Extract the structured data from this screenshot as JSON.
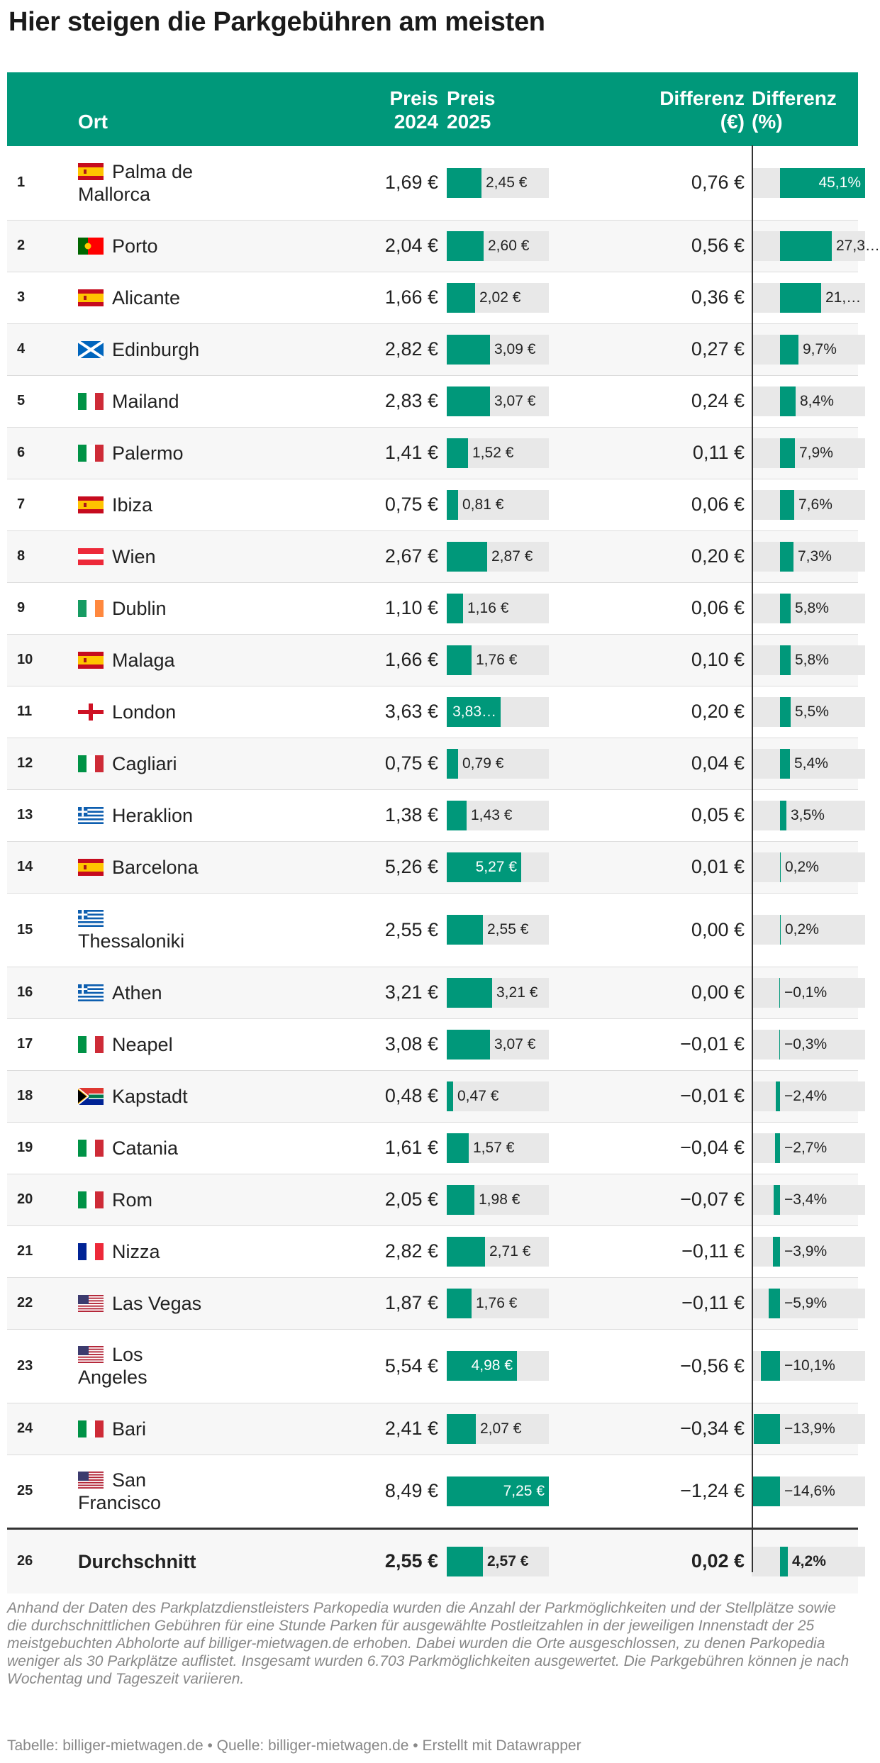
{
  "title": "Hier steigen die Parkgebühren am meisten",
  "headers": {
    "ort": "Ort",
    "preis2024": [
      "Preis",
      "2024"
    ],
    "preis2025": [
      "Preis",
      "2025"
    ],
    "diff_abs": [
      "Differenz",
      "(€)"
    ],
    "diff_pct": [
      "Differenz",
      "(%)"
    ]
  },
  "colors": {
    "accent": "#00987a",
    "bar_background": "#e8e8e8",
    "text": "#222222",
    "muted": "#888888"
  },
  "chart_data": {
    "type": "table",
    "columns": [
      "",
      "Ort",
      "Preis 2024",
      "Preis 2025",
      "Differenz (€)",
      "Differenz (%)"
    ],
    "price_bar_max": 7.25,
    "pct_range": [
      -14.6,
      45.1
    ],
    "rows": [
      {
        "rank": "1",
        "ort": "Palma de Mallorca",
        "flag": "spain-flag-icon",
        "p24": "1,69 €",
        "p25": "2,45 €",
        "p25v": 2.45,
        "dabs": "0,76 €",
        "dpct": "45,1%",
        "dpctv": 45.1
      },
      {
        "rank": "2",
        "ort": "Porto",
        "flag": "portugal-flag-icon",
        "p24": "2,04 €",
        "p25": "2,60 €",
        "p25v": 2.6,
        "dabs": "0,56 €",
        "dpct": "27,3…",
        "dpctv": 27.3
      },
      {
        "rank": "3",
        "ort": "Alicante",
        "flag": "spain-flag-icon",
        "p24": "1,66 €",
        "p25": "2,02 €",
        "p25v": 2.02,
        "dabs": "0,36 €",
        "dpct": "21,…",
        "dpctv": 21.7
      },
      {
        "rank": "4",
        "ort": "Edinburgh",
        "flag": "scotland-flag-icon",
        "p24": "2,82 €",
        "p25": "3,09 €",
        "p25v": 3.09,
        "dabs": "0,27 €",
        "dpct": "9,7%",
        "dpctv": 9.7
      },
      {
        "rank": "5",
        "ort": "Mailand",
        "flag": "italy-flag-icon",
        "p24": "2,83 €",
        "p25": "3,07 €",
        "p25v": 3.07,
        "dabs": "0,24 €",
        "dpct": "8,4%",
        "dpctv": 8.4
      },
      {
        "rank": "6",
        "ort": "Palermo",
        "flag": "italy-flag-icon",
        "p24": "1,41 €",
        "p25": "1,52 €",
        "p25v": 1.52,
        "dabs": "0,11 €",
        "dpct": "7,9%",
        "dpctv": 7.9
      },
      {
        "rank": "7",
        "ort": "Ibiza",
        "flag": "spain-flag-icon",
        "p24": "0,75 €",
        "p25": "0,81 €",
        "p25v": 0.81,
        "dabs": "0,06 €",
        "dpct": "7,6%",
        "dpctv": 7.6
      },
      {
        "rank": "8",
        "ort": "Wien",
        "flag": "austria-flag-icon",
        "p24": "2,67 €",
        "p25": "2,87 €",
        "p25v": 2.87,
        "dabs": "0,20 €",
        "dpct": "7,3%",
        "dpctv": 7.3
      },
      {
        "rank": "9",
        "ort": "Dublin",
        "flag": "ireland-flag-icon",
        "p24": "1,10 €",
        "p25": "1,16 €",
        "p25v": 1.16,
        "dabs": "0,06 €",
        "dpct": "5,8%",
        "dpctv": 5.8
      },
      {
        "rank": "10",
        "ort": "Malaga",
        "flag": "spain-flag-icon",
        "p24": "1,66 €",
        "p25": "1,76 €",
        "p25v": 1.76,
        "dabs": "0,10 €",
        "dpct": "5,8%",
        "dpctv": 5.8
      },
      {
        "rank": "11",
        "ort": "London",
        "flag": "england-flag-icon",
        "p24": "3,63 €",
        "p25": "3,83…",
        "p25v": 3.83,
        "dabs": "0,20 €",
        "dpct": "5,5%",
        "dpctv": 5.5
      },
      {
        "rank": "12",
        "ort": "Cagliari",
        "flag": "italy-flag-icon",
        "p24": "0,75 €",
        "p25": "0,79 €",
        "p25v": 0.79,
        "dabs": "0,04 €",
        "dpct": "5,4%",
        "dpctv": 5.4
      },
      {
        "rank": "13",
        "ort": "Heraklion",
        "flag": "greece-flag-icon",
        "p24": "1,38 €",
        "p25": "1,43 €",
        "p25v": 1.43,
        "dabs": "0,05 €",
        "dpct": "3,5%",
        "dpctv": 3.5
      },
      {
        "rank": "14",
        "ort": "Barcelona",
        "flag": "spain-flag-icon",
        "p24": "5,26 €",
        "p25": "5,27 €",
        "p25v": 5.27,
        "dabs": "0,01 €",
        "dpct": "0,2%",
        "dpctv": 0.2
      },
      {
        "rank": "15",
        "ort": "Thessaloniki",
        "flag": "greece-flag-icon",
        "p24": "2,55 €",
        "p25": "2,55 €",
        "p25v": 2.55,
        "dabs": "0,00 €",
        "dpct": "0,2%",
        "dpctv": 0.2
      },
      {
        "rank": "16",
        "ort": "Athen",
        "flag": "greece-flag-icon",
        "p24": "3,21 €",
        "p25": "3,21 €",
        "p25v": 3.21,
        "dabs": "0,00 €",
        "dpct": "−0,1%",
        "dpctv": -0.1
      },
      {
        "rank": "17",
        "ort": "Neapel",
        "flag": "italy-flag-icon",
        "p24": "3,08 €",
        "p25": "3,07 €",
        "p25v": 3.07,
        "dabs": "−0,01 €",
        "dpct": "−0,3%",
        "dpctv": -0.3
      },
      {
        "rank": "18",
        "ort": "Kapstadt",
        "flag": "south-africa-flag-icon",
        "p24": "0,48 €",
        "p25": "0,47 €",
        "p25v": 0.47,
        "dabs": "−0,01 €",
        "dpct": "−2,4%",
        "dpctv": -2.4
      },
      {
        "rank": "19",
        "ort": "Catania",
        "flag": "italy-flag-icon",
        "p24": "1,61 €",
        "p25": "1,57 €",
        "p25v": 1.57,
        "dabs": "−0,04 €",
        "dpct": "−2,7%",
        "dpctv": -2.7
      },
      {
        "rank": "20",
        "ort": "Rom",
        "flag": "italy-flag-icon",
        "p24": "2,05 €",
        "p25": "1,98 €",
        "p25v": 1.98,
        "dabs": "−0,07 €",
        "dpct": "−3,4%",
        "dpctv": -3.4
      },
      {
        "rank": "21",
        "ort": "Nizza",
        "flag": "france-flag-icon",
        "p24": "2,82 €",
        "p25": "2,71 €",
        "p25v": 2.71,
        "dabs": "−0,11 €",
        "dpct": "−3,9%",
        "dpctv": -3.9
      },
      {
        "rank": "22",
        "ort": "Las Vegas",
        "flag": "usa-flag-icon",
        "p24": "1,87 €",
        "p25": "1,76 €",
        "p25v": 1.76,
        "dabs": "−0,11 €",
        "dpct": "−5,9%",
        "dpctv": -5.9
      },
      {
        "rank": "23",
        "ort": "Los Angeles",
        "flag": "usa-flag-icon",
        "p24": "5,54 €",
        "p25": "4,98 €",
        "p25v": 4.98,
        "dabs": "−0,56 €",
        "dpct": "−10,1%",
        "dpctv": -10.1
      },
      {
        "rank": "24",
        "ort": "Bari",
        "flag": "italy-flag-icon",
        "p24": "2,41 €",
        "p25": "2,07 €",
        "p25v": 2.07,
        "dabs": "−0,34 €",
        "dpct": "−13,9%",
        "dpctv": -13.9
      },
      {
        "rank": "25",
        "ort": "San Francisco",
        "flag": "usa-flag-icon",
        "p24": "8,49 €",
        "p25": "7,25 €",
        "p25v": 7.25,
        "dabs": "−1,24 €",
        "dpct": "−14,6%",
        "dpctv": -14.6
      },
      {
        "rank": "26",
        "ort": "Durchschnitt",
        "flag": "",
        "p24": "2,55 €",
        "p25": "2,57 €",
        "p25v": 2.57,
        "dabs": "0,02 €",
        "dpct": "4,2%",
        "dpctv": 4.2
      }
    ]
  },
  "notes": "Anhand der Daten des Parkplatzdienstleisters Parkopedia wurden die Anzahl der Parkmöglichkeiten und der Stellplätze sowie die durchschnittlichen Gebühren für eine Stunde Parken für ausgewählte Postleitzahlen in der jeweiligen Innenstadt der 25 meistgebuchten Abholorte auf billiger-mietwagen.de erhoben. Dabei wurden die Orte ausgeschlossen, zu denen Parkopedia weniger als 30 Parkplätze auflistet. Insgesamt wurden 6.703 Parkmöglichkeiten ausgewertet. Die Parkgebühren können je nach Wochentag und Tageszeit variieren.",
  "footer": "Tabelle: billiger-mietwagen.de • Quelle: billiger-mietwagen.de • Erstellt mit Datawrapper"
}
